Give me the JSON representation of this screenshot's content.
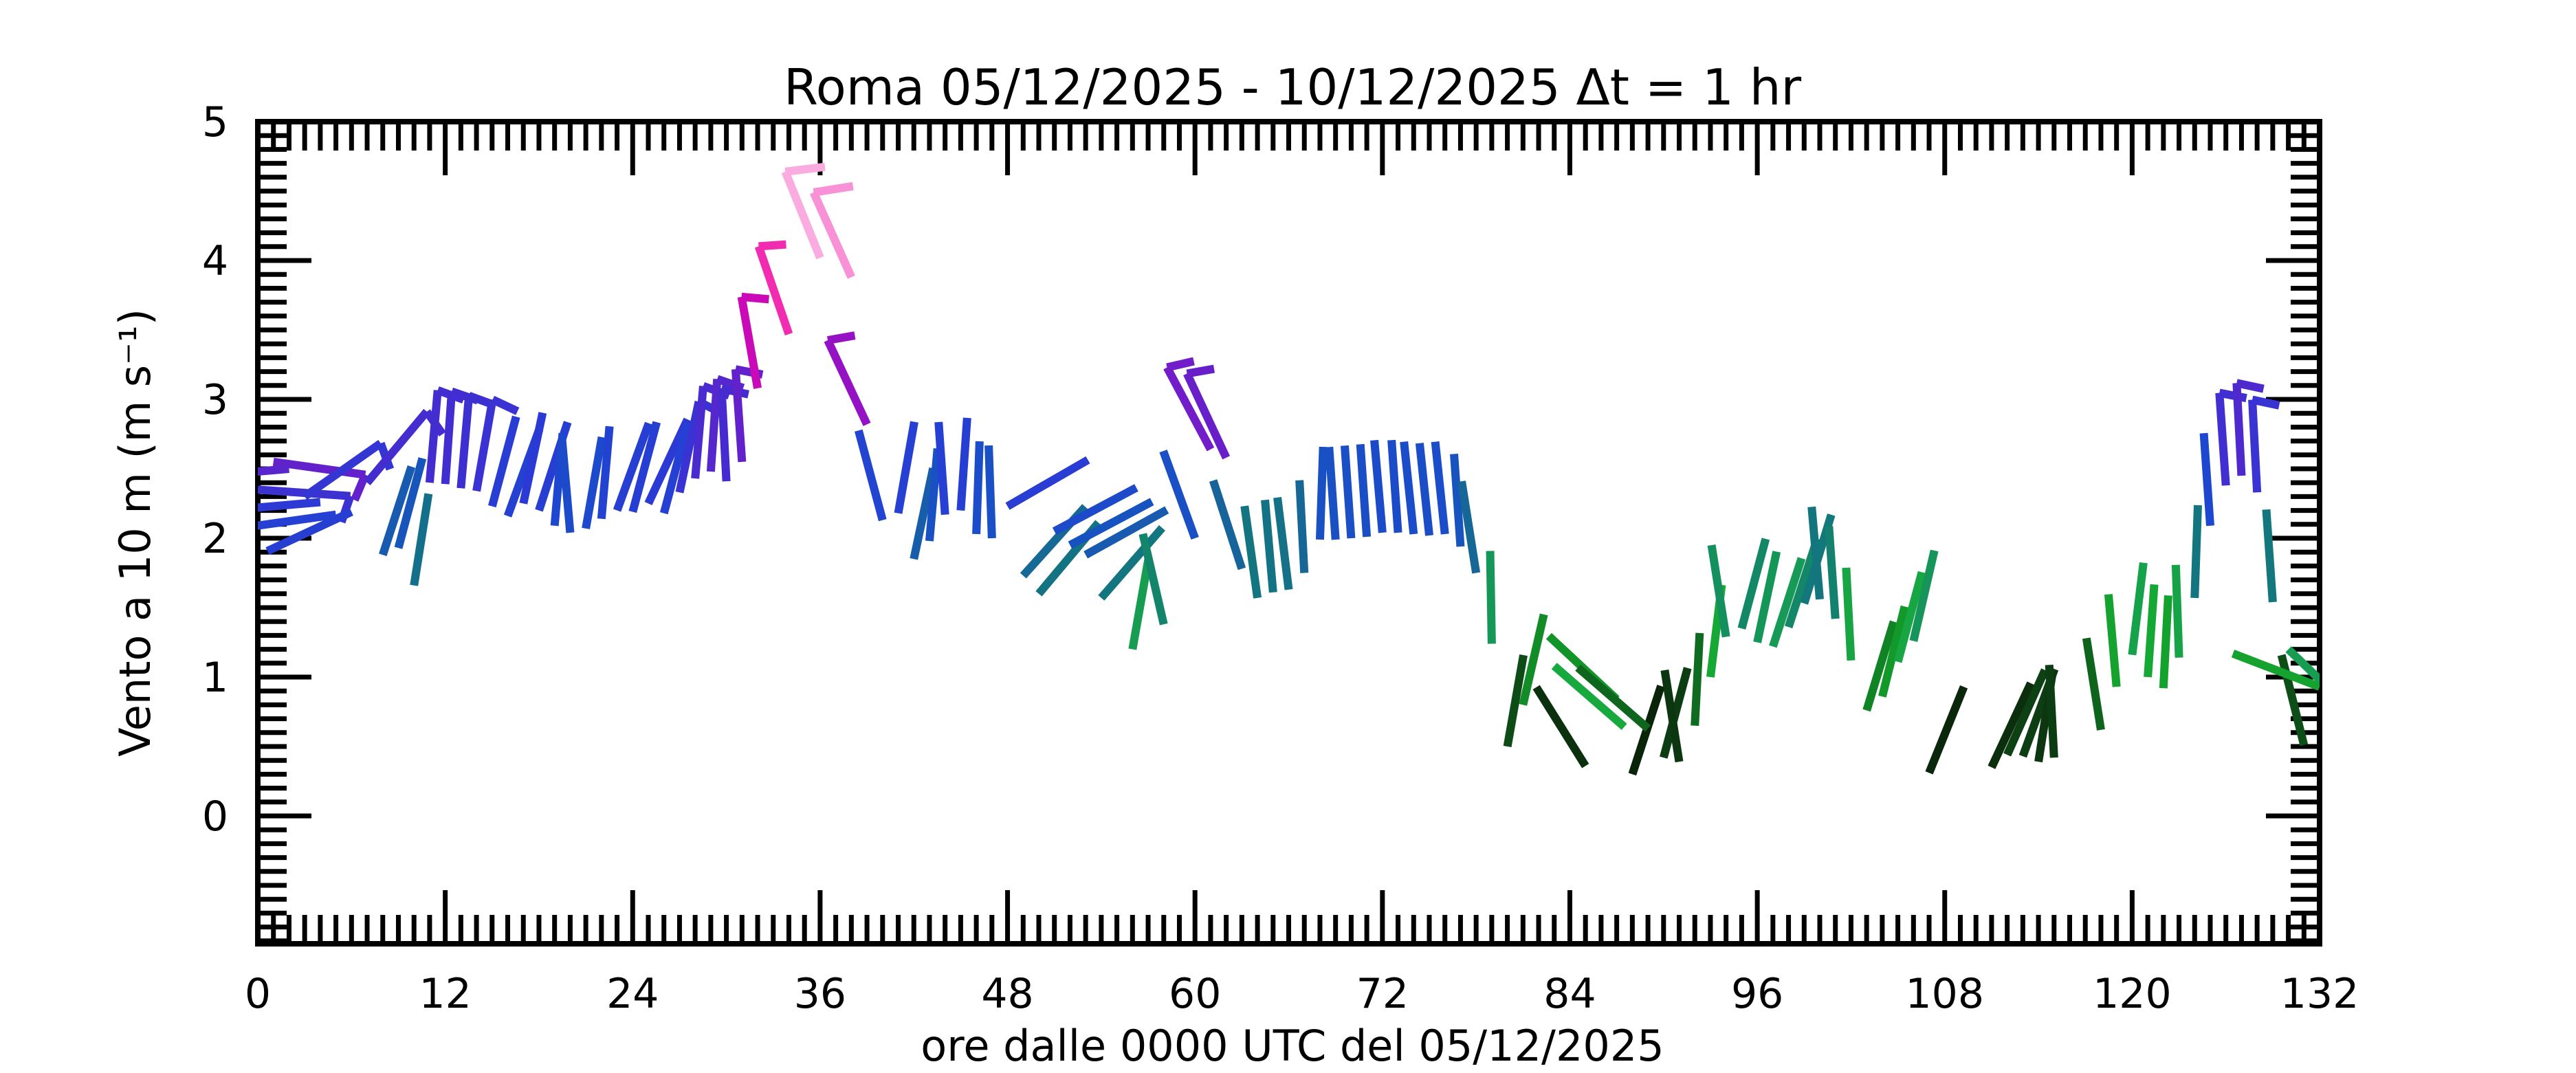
{
  "title": "Roma   05/12/2025 - 10/12/2025   Δt = 1 hr",
  "chart_data": {
    "type": "wind-staff-meteogram",
    "title": "Roma   05/12/2025 - 10/12/2025   Δt = 1 hr",
    "xlabel": "ore dalle 0000 UTC del 05/12/2025",
    "ylabel": "Vento a 10 m (m s⁻¹)",
    "xlim": [
      0,
      132
    ],
    "ylim": [
      -0.92,
      5.0
    ],
    "x_major_ticks": [
      0,
      12,
      24,
      36,
      48,
      60,
      72,
      84,
      96,
      108,
      120,
      132
    ],
    "x_minor_step_hours": 1,
    "y_major_ticks": [
      0,
      1,
      2,
      3,
      4,
      5
    ],
    "y_minor_step": 0.1,
    "grid": false,
    "legend": "none",
    "staff_semantics": "each staff base sits at (hour, wind speed m/s); staff points in wind direction (screen angle, deg CCW from +x); color encodes speed; half barb when speed >= 2.3 m/s, full barb when >= 3.8 m/s",
    "barb_half_threshold_ms": 2.3,
    "barb_full_threshold_ms": 3.8,
    "speed_colormap_stops": [
      [
        0.0,
        "#000000"
      ],
      [
        0.3,
        "#0a240a"
      ],
      [
        0.45,
        "#0d4214"
      ],
      [
        0.6,
        "#0e5f1c"
      ],
      [
        0.75,
        "#108224"
      ],
      [
        0.9,
        "#14a02c"
      ],
      [
        1.05,
        "#17ac38"
      ],
      [
        1.2,
        "#169d52"
      ],
      [
        1.35,
        "#138866"
      ],
      [
        1.5,
        "#127a78"
      ],
      [
        1.65,
        "#147089"
      ],
      [
        1.8,
        "#17629d"
      ],
      [
        1.95,
        "#1753c0"
      ],
      [
        2.1,
        "#1f46d0"
      ],
      [
        2.25,
        "#2b3ad4"
      ],
      [
        2.4,
        "#442dd0"
      ],
      [
        2.55,
        "#6321cb"
      ],
      [
        2.7,
        "#7d18c8"
      ],
      [
        2.85,
        "#9a10c3"
      ],
      [
        3.0,
        "#b80bbd"
      ],
      [
        3.15,
        "#d709b0"
      ],
      [
        3.35,
        "#ee0fa4"
      ],
      [
        3.6,
        "#f64cbe"
      ],
      [
        3.85,
        "#f98cd4"
      ],
      [
        4.1,
        "#fbb9e5"
      ],
      [
        4.45,
        "#fde2f3"
      ],
      [
        4.8,
        "#fff6fc"
      ]
    ],
    "hours": [
      0,
      1,
      2,
      3,
      4,
      5,
      6,
      7,
      8,
      9,
      10,
      11,
      12,
      13,
      14,
      15,
      16,
      17,
      18,
      19,
      20,
      21,
      22,
      23,
      24,
      25,
      26,
      27,
      28,
      29,
      30,
      31,
      32,
      34,
      36,
      38,
      39,
      40,
      41,
      42,
      43,
      44,
      45,
      46,
      47,
      48,
      49,
      50,
      51,
      52,
      53,
      54,
      56,
      58,
      60,
      61,
      62,
      63,
      64,
      65,
      66,
      67,
      68,
      69,
      70,
      71,
      72,
      73,
      74,
      75,
      76,
      77,
      78,
      79,
      80,
      81,
      83,
      85,
      87,
      88,
      89,
      90,
      91,
      92,
      93,
      94,
      95,
      96,
      97,
      98,
      99,
      100,
      101,
      102,
      103,
      104,
      105,
      106,
      107,
      111,
      112,
      113,
      114,
      115,
      118,
      119,
      120,
      121,
      122,
      123,
      124,
      125,
      126,
      127,
      128,
      129,
      130,
      131,
      132
    ],
    "speed_ms": [
      2.35,
      2.55,
      2.5,
      2.3,
      2.26,
      2.17,
      2.19,
      2.4,
      1.88,
      1.93,
      1.66,
      2.4,
      2.39,
      2.36,
      2.34,
      2.23,
      2.16,
      2.25,
      2.2,
      2.09,
      2.04,
      2.07,
      2.14,
      2.2,
      2.19,
      2.25,
      2.18,
      2.33,
      2.43,
      2.48,
      2.41,
      2.55,
      3.08,
      3.47,
      4.02,
      3.88,
      2.82,
      2.13,
      2.18,
      1.85,
      1.98,
      2.17,
      2.2,
      2.03,
      2.0,
      2.23,
      1.73,
      1.6,
      2.05,
      1.95,
      1.88,
      1.57,
      1.2,
      1.38,
      2.0,
      2.64,
      2.58,
      1.78,
      1.57,
      1.61,
      1.63,
      1.75,
      1.99,
      1.99,
      2.0,
      2.01,
      2.04,
      2.04,
      2.03,
      2.02,
      2.03,
      1.94,
      1.75,
      1.24,
      0.5,
      0.8,
      1.08,
      0.36,
      0.84,
      0.3,
      0.63,
      0.42,
      0.39,
      0.65,
      1.0,
      1.29,
      1.35,
      1.25,
      1.22,
      1.36,
      1.53,
      1.56,
      1.42,
      1.12,
      0.76,
      0.86,
      1.11,
      1.26,
      0.31,
      0.35,
      0.44,
      0.43,
      0.39,
      0.42,
      0.62,
      0.93,
      1.16,
      1.0,
      0.92,
      1.14,
      1.57,
      2.09,
      2.38,
      2.45,
      2.33,
      1.54,
      1.2,
      0.51,
      0.93
    ],
    "staff_angle_deg": [
      -4,
      -8,
      185,
      35,
      185,
      188,
      205,
      50,
      72,
      75,
      81,
      85,
      86,
      85,
      80,
      75,
      70,
      78,
      72,
      85,
      95,
      80,
      85,
      70,
      75,
      65,
      75,
      78,
      85,
      86,
      93,
      94,
      100,
      109,
      112,
      114,
      115,
      105,
      80,
      78,
      85,
      94,
      86,
      88,
      92,
      30,
      48,
      50,
      28,
      28,
      29,
      49,
      80,
      103,
      110,
      118,
      115,
      108,
      98,
      95,
      97,
      93,
      88,
      94,
      94,
      94,
      95,
      94,
      96,
      96,
      96,
      94,
      99,
      91,
      80,
      77,
      -41,
      122,
      137,
      72,
      139,
      75,
      99,
      87,
      83,
      99,
      75,
      78,
      72,
      72,
      73,
      95,
      94,
      93,
      73,
      76,
      75,
      77,
      68,
      65,
      66,
      70,
      81,
      93,
      99,
      95,
      83,
      86,
      87,
      92,
      88,
      94,
      94,
      93,
      93,
      94,
      -44,
      104,
      159
    ]
  }
}
